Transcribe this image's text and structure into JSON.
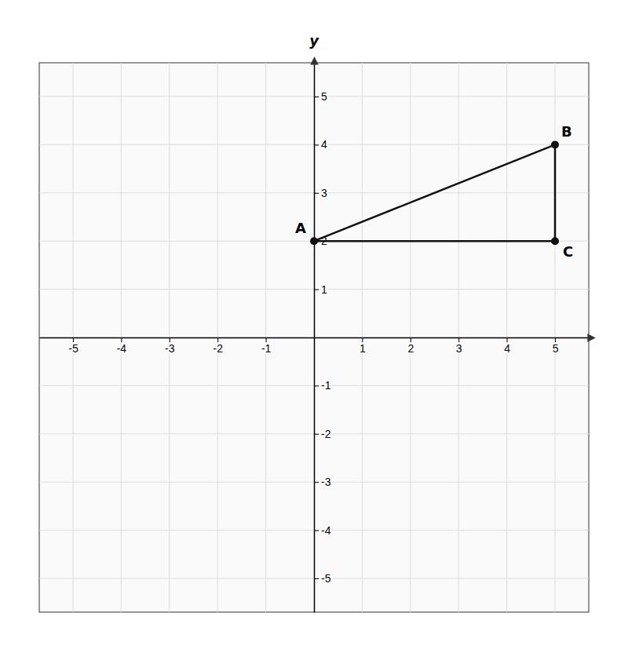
{
  "chart_data": {
    "type": "line",
    "x": [
      0,
      5,
      5
    ],
    "values": [
      2,
      4,
      2
    ],
    "annotations": [
      "A",
      "B",
      "C"
    ],
    "color": "#111111",
    "marker": "circle",
    "line_style": "solid",
    "ylabel": "y",
    "xlim": [
      -5.7,
      5.7
    ],
    "ylim": [
      -5.7,
      5.7
    ],
    "xticks": [
      -5,
      -4,
      -3,
      -2,
      -1,
      1,
      2,
      3,
      4,
      5
    ],
    "yticks": [
      -5,
      -4,
      -3,
      -2,
      -1,
      1,
      2,
      3,
      4,
      5
    ],
    "grid": true
  }
}
